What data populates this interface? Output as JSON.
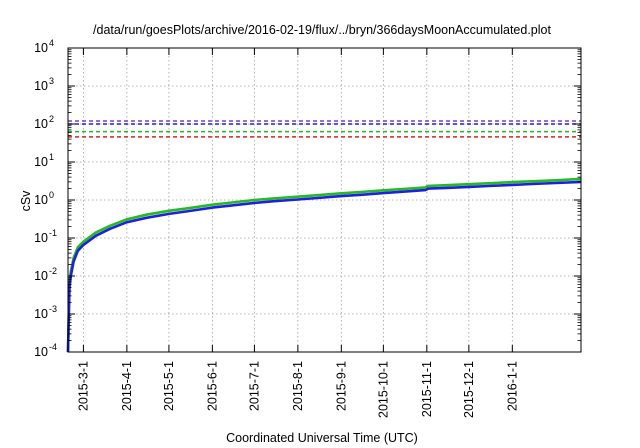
{
  "chart_data": {
    "type": "line",
    "title": "/data/run/goesPlots/archive/2016-02-19/flux/../bryn/366daysMoonAccumulated.plot",
    "xlabel": "Coordinated Universal Time (UTC)",
    "ylabel": "cSv",
    "x_range": [
      "2015-02-18",
      "2016-02-19"
    ],
    "y_scale": "log",
    "y_range": [
      0.0001,
      10000
    ],
    "grid": true,
    "x_ticks": [
      "2015-3-1",
      "2015-4-1",
      "2015-5-1",
      "2015-6-1",
      "2015-7-1",
      "2015-8-1",
      "2015-9-1",
      "2015-10-1",
      "2015-11-1",
      "2015-12-1",
      "2016-1-1"
    ],
    "y_ticks": [
      {
        "base": "10",
        "exp": "-4",
        "value": 0.0001
      },
      {
        "base": "10",
        "exp": "-3",
        "value": 0.001
      },
      {
        "base": "10",
        "exp": "-2",
        "value": 0.01
      },
      {
        "base": "10",
        "exp": "-1",
        "value": 0.1
      },
      {
        "base": "10",
        "exp": "0",
        "value": 1
      },
      {
        "base": "10",
        "exp": "1",
        "value": 10
      },
      {
        "base": "10",
        "exp": "2",
        "value": 100
      },
      {
        "base": "10",
        "exp": "3",
        "value": 1000
      },
      {
        "base": "10",
        "exp": "4",
        "value": 10000
      }
    ],
    "threshold_lines": [
      {
        "value": 120,
        "color": "#7f3fbf"
      },
      {
        "value": 100,
        "color": "#1f1fdf"
      },
      {
        "value": 63,
        "color": "#22bb22"
      },
      {
        "value": 46,
        "color": "#dd2222"
      }
    ],
    "series": [
      {
        "color": "#22bb22",
        "points": [
          [
            "2015-02-18",
            0.0001
          ],
          [
            "2015-02-19",
            0.006
          ],
          [
            "2015-02-20",
            0.013
          ],
          [
            "2015-02-22",
            0.03
          ],
          [
            "2015-02-25",
            0.057
          ],
          [
            "2015-03-01",
            0.08
          ],
          [
            "2015-03-10",
            0.14
          ],
          [
            "2015-03-20",
            0.21
          ],
          [
            "2015-04-01",
            0.31
          ],
          [
            "2015-04-15",
            0.41
          ],
          [
            "2015-05-01",
            0.52
          ],
          [
            "2015-05-15",
            0.61
          ],
          [
            "2015-06-01",
            0.75
          ],
          [
            "2015-06-15",
            0.86
          ],
          [
            "2015-07-01",
            1.0
          ],
          [
            "2015-07-15",
            1.1
          ],
          [
            "2015-08-01",
            1.22
          ],
          [
            "2015-08-15",
            1.34
          ],
          [
            "2015-09-01",
            1.5
          ],
          [
            "2015-09-15",
            1.62
          ],
          [
            "2015-10-01",
            1.8
          ],
          [
            "2015-10-15",
            1.95
          ],
          [
            "2015-10-31",
            2.15
          ],
          [
            "2015-11-02",
            2.35
          ],
          [
            "2015-11-15",
            2.45
          ],
          [
            "2015-12-01",
            2.6
          ],
          [
            "2015-12-15",
            2.75
          ],
          [
            "2016-01-01",
            2.95
          ],
          [
            "2016-01-15",
            3.1
          ],
          [
            "2016-02-01",
            3.3
          ],
          [
            "2016-02-19",
            3.6
          ]
        ]
      },
      {
        "color": "#1f1fdf",
        "points": [
          [
            "2015-02-18",
            0.0001
          ],
          [
            "2015-02-19",
            0.0045
          ],
          [
            "2015-02-20",
            0.01
          ],
          [
            "2015-02-22",
            0.024
          ],
          [
            "2015-02-25",
            0.046
          ],
          [
            "2015-03-01",
            0.066
          ],
          [
            "2015-03-10",
            0.115
          ],
          [
            "2015-03-20",
            0.175
          ],
          [
            "2015-04-01",
            0.26
          ],
          [
            "2015-04-15",
            0.34
          ],
          [
            "2015-05-01",
            0.43
          ],
          [
            "2015-05-15",
            0.51
          ],
          [
            "2015-06-01",
            0.63
          ],
          [
            "2015-06-15",
            0.72
          ],
          [
            "2015-07-01",
            0.84
          ],
          [
            "2015-07-15",
            0.93
          ],
          [
            "2015-08-01",
            1.03
          ],
          [
            "2015-08-15",
            1.13
          ],
          [
            "2015-09-01",
            1.27
          ],
          [
            "2015-09-15",
            1.37
          ],
          [
            "2015-10-01",
            1.52
          ],
          [
            "2015-10-15",
            1.65
          ],
          [
            "2015-10-31",
            1.82
          ],
          [
            "2015-11-02",
            2.0
          ],
          [
            "2015-11-15",
            2.08
          ],
          [
            "2015-12-01",
            2.21
          ],
          [
            "2015-12-15",
            2.34
          ],
          [
            "2016-01-01",
            2.5
          ],
          [
            "2016-01-15",
            2.64
          ],
          [
            "2016-02-01",
            2.8
          ],
          [
            "2016-02-19",
            3.0
          ]
        ]
      }
    ]
  }
}
